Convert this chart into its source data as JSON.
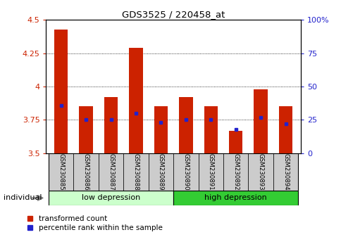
{
  "title": "GDS3525 / 220458_at",
  "samples": [
    "GSM230885",
    "GSM230886",
    "GSM230887",
    "GSM230888",
    "GSM230889",
    "GSM230890",
    "GSM230891",
    "GSM230892",
    "GSM230893",
    "GSM230894"
  ],
  "bar_top": [
    4.43,
    3.85,
    3.92,
    4.29,
    3.85,
    3.92,
    3.85,
    3.67,
    3.98,
    3.85
  ],
  "bar_bottom": 3.5,
  "percentile_values": [
    3.86,
    3.75,
    3.75,
    3.8,
    3.73,
    3.75,
    3.75,
    3.68,
    3.77,
    3.72
  ],
  "ylim": [
    3.5,
    4.5
  ],
  "yticks_left": [
    3.5,
    3.75,
    4.0,
    4.25,
    4.5
  ],
  "yticks_right": [
    0,
    25,
    50,
    75,
    100
  ],
  "bar_color": "#cc2200",
  "percentile_color": "#2222cc",
  "low_depression_count": 5,
  "high_depression_count": 5,
  "low_label": "low depression",
  "high_label": "high depression",
  "low_bg": "#ccffcc",
  "high_bg": "#33cc33",
  "sample_bg": "#cccccc",
  "legend_red_label": "transformed count",
  "legend_blue_label": "percentile rank within the sample",
  "individual_label": "individual",
  "bar_width": 0.55
}
